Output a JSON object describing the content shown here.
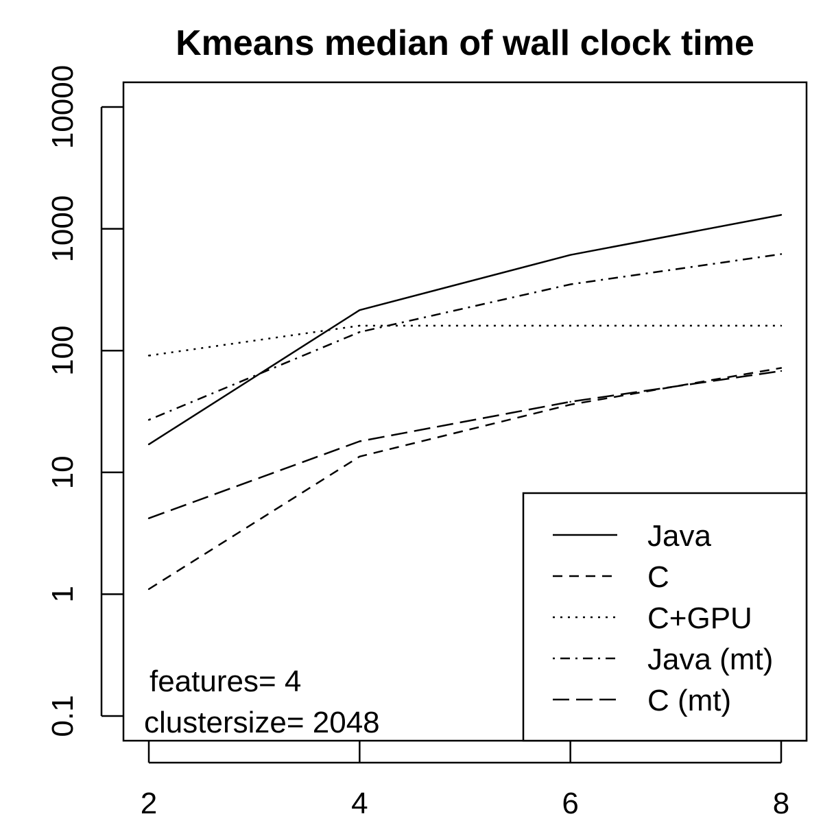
{
  "chart_data": {
    "type": "line",
    "title": "Kmeans median of wall clock time",
    "xlabel": "",
    "ylabel": "",
    "y_scale": "log",
    "x": [
      2,
      4,
      6,
      8
    ],
    "x_ticks": [
      "2",
      "4",
      "6",
      "8"
    ],
    "xlim": [
      2,
      8
    ],
    "ylim": [
      0.1,
      10000
    ],
    "y_ticks": [
      0.1,
      1,
      10,
      100,
      1000,
      10000
    ],
    "y_tick_labels": [
      "0.1",
      "1",
      "10",
      "100",
      "1000",
      "10000"
    ],
    "series": [
      {
        "name": "Java",
        "dash": "solid",
        "values": [
          17,
          215,
          610,
          1300
        ]
      },
      {
        "name": "C",
        "dash": "dashed",
        "values": [
          1.1,
          13.5,
          36,
          72
        ]
      },
      {
        "name": "C+GPU",
        "dash": "dotted",
        "values": [
          91,
          160,
          160,
          160
        ]
      },
      {
        "name": "Java (mt)",
        "dash": "dotdash",
        "values": [
          27,
          142,
          350,
          620
        ]
      },
      {
        "name": "C (mt)",
        "dash": "longdash",
        "values": [
          4.2,
          18,
          38,
          68
        ]
      }
    ],
    "legend_position": "bottom-right",
    "annotations": [
      "features= 4",
      "clustersize= 2048"
    ]
  }
}
